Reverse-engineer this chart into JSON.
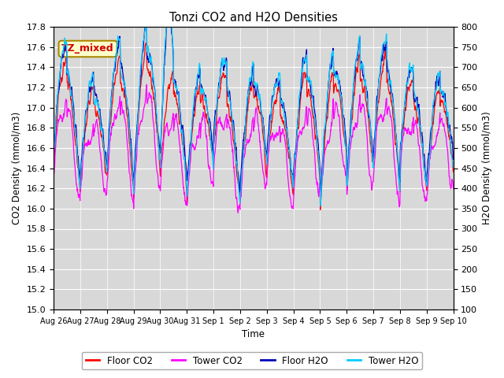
{
  "title": "Tonzi CO2 and H2O Densities",
  "xlabel": "Time",
  "ylabel_left": "CO2 Density (mmol/m3)",
  "ylabel_right": "H2O Density (mmol/m3)",
  "annotation": "TZ_mixed",
  "annotation_color": "#cc0000",
  "annotation_bg": "#ffffcc",
  "annotation_border": "#aa8800",
  "ylim_left": [
    15.0,
    17.8
  ],
  "ylim_right": [
    100,
    800
  ],
  "yticks_left": [
    15.0,
    15.2,
    15.4,
    15.6,
    15.8,
    16.0,
    16.2,
    16.4,
    16.6,
    16.8,
    17.0,
    17.2,
    17.4,
    17.6,
    17.8
  ],
  "yticks_right": [
    100,
    150,
    200,
    250,
    300,
    350,
    400,
    450,
    500,
    550,
    600,
    650,
    700,
    750,
    800
  ],
  "xtick_labels": [
    "Aug 26",
    "Aug 27",
    "Aug 28",
    "Aug 29",
    "Aug 30",
    "Aug 31",
    "Sep 1",
    "Sep 2",
    "Sep 3",
    "Sep 4",
    "Sep 5",
    "Sep 6",
    "Sep 7",
    "Sep 8",
    "Sep 9",
    "Sep 10"
  ],
  "colors": {
    "floor_co2": "#ff0000",
    "tower_co2": "#ff00ff",
    "floor_h2o": "#0000bb",
    "tower_h2o": "#00ccff"
  },
  "legend_labels": [
    "Floor CO2",
    "Tower CO2",
    "Floor H2O",
    "Tower H2O"
  ],
  "plot_bg": "#d8d8d8",
  "fig_bg": "#ffffff",
  "grid_color": "#ffffff",
  "linewidth": 0.9,
  "n_days": 15,
  "points_per_day": 96
}
